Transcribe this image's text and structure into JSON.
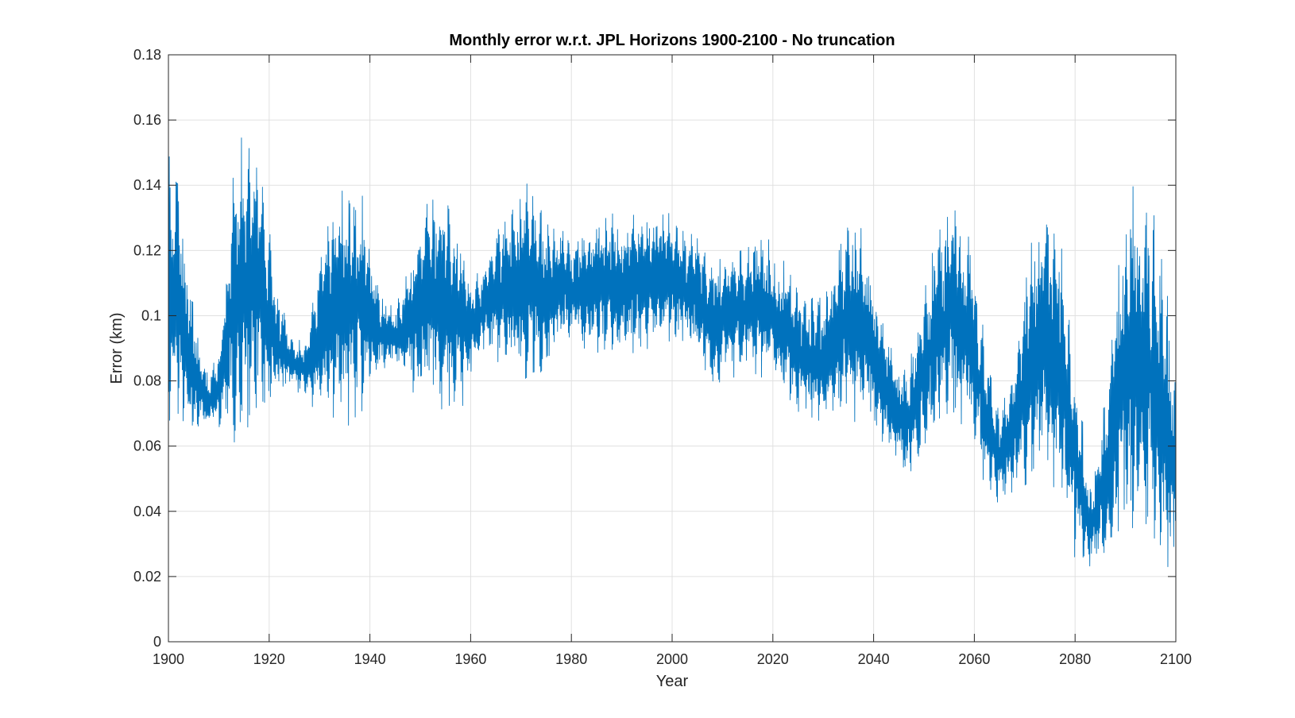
{
  "chart_data": {
    "type": "line",
    "title": "Monthly error w.r.t. JPL Horizons 1900-2100 - No truncation",
    "xlabel": "Year",
    "ylabel": "Error (km)",
    "xlim": [
      1900,
      2100
    ],
    "ylim": [
      0,
      0.18
    ],
    "xticks": [
      "1900",
      "1920",
      "1940",
      "1960",
      "1980",
      "2000",
      "2020",
      "2040",
      "2060",
      "2080",
      "2100"
    ],
    "yticks": [
      "0",
      "0.02",
      "0.04",
      "0.06",
      "0.08",
      "0.1",
      "0.12",
      "0.14",
      "0.16",
      "0.18"
    ],
    "grid": true,
    "line_color": "#0072BD",
    "series": [
      {
        "sampling": "monthly",
        "envelope": {
          "x": [
            1900,
            1902,
            1904,
            1906,
            1908,
            1910,
            1913,
            1916,
            1918,
            1921,
            1924,
            1927,
            1930,
            1933,
            1936,
            1939,
            1942,
            1945,
            1948,
            1951,
            1954,
            1957,
            1960,
            1963,
            1966,
            1969,
            1972,
            1975,
            1978,
            1981,
            1984,
            1987,
            1990,
            1993,
            1996,
            1999,
            2002,
            2005,
            2008,
            2011,
            2014,
            2017,
            2020,
            2023,
            2026,
            2029,
            2032,
            2035,
            2038,
            2041,
            2044,
            2047,
            2050,
            2053,
            2056,
            2059,
            2062,
            2065,
            2068,
            2071,
            2074,
            2077,
            2080,
            2083,
            2086,
            2089,
            2092,
            2095,
            2098,
            2100
          ],
          "min": [
            0.068,
            0.062,
            0.056,
            0.066,
            0.064,
            0.065,
            0.062,
            0.058,
            0.062,
            0.072,
            0.078,
            0.076,
            0.07,
            0.067,
            0.066,
            0.072,
            0.082,
            0.085,
            0.076,
            0.072,
            0.07,
            0.068,
            0.079,
            0.088,
            0.085,
            0.08,
            0.08,
            0.082,
            0.089,
            0.092,
            0.087,
            0.087,
            0.086,
            0.088,
            0.09,
            0.092,
            0.089,
            0.085,
            0.075,
            0.082,
            0.082,
            0.08,
            0.078,
            0.073,
            0.068,
            0.065,
            0.068,
            0.067,
            0.067,
            0.062,
            0.054,
            0.049,
            0.058,
            0.063,
            0.064,
            0.06,
            0.047,
            0.042,
            0.044,
            0.045,
            0.049,
            0.04,
            0.025,
            0.022,
            0.024,
            0.027,
            0.03,
            0.028,
            0.018,
            0.02
          ],
          "max": [
            0.15,
            0.145,
            0.12,
            0.092,
            0.082,
            0.09,
            0.15,
            0.158,
            0.155,
            0.115,
            0.095,
            0.092,
            0.118,
            0.14,
            0.146,
            0.135,
            0.108,
            0.102,
            0.122,
            0.135,
            0.145,
            0.132,
            0.115,
            0.118,
            0.13,
            0.136,
            0.142,
            0.13,
            0.128,
            0.125,
            0.13,
            0.133,
            0.131,
            0.134,
            0.133,
            0.134,
            0.13,
            0.124,
            0.12,
            0.119,
            0.122,
            0.128,
            0.121,
            0.115,
            0.108,
            0.105,
            0.116,
            0.131,
            0.127,
            0.108,
            0.089,
            0.085,
            0.11,
            0.13,
            0.138,
            0.128,
            0.095,
            0.07,
            0.089,
            0.125,
            0.137,
            0.128,
            0.085,
            0.048,
            0.075,
            0.13,
            0.145,
            0.135,
            0.11,
            0.08
          ]
        }
      }
    ]
  }
}
